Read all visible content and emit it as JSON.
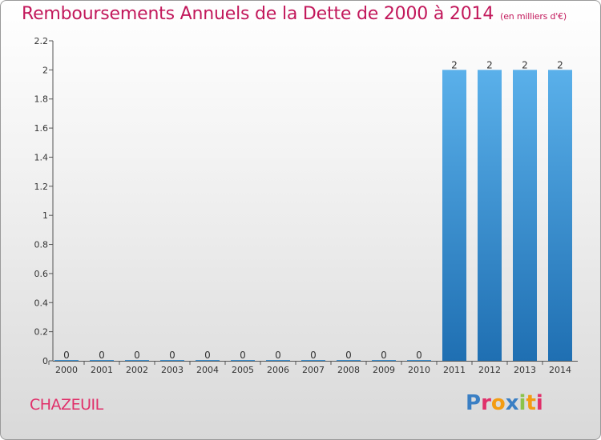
{
  "header": {
    "title": "Remboursements Annuels de la Dette de 2000 à 2014",
    "unit": "(en milliers d'€)"
  },
  "footer": {
    "commune": "CHAZEUIL",
    "logo": "Proxiti"
  },
  "colors": {
    "title": "#c2185b",
    "bar_top": "#5ab0ea",
    "bar_bottom": "#1f6fb2",
    "logo_letters": [
      "#3a7fc4",
      "#e0306a",
      "#f39c12",
      "#3a7fc4",
      "#8bc34a",
      "#f39c12",
      "#e0306a"
    ]
  },
  "chart_data": {
    "type": "bar",
    "title": "Remboursements Annuels de la Dette de 2000 à 2014",
    "subtitle": "(en milliers d'€)",
    "xlabel": "",
    "ylabel": "",
    "categories": [
      "2000",
      "2001",
      "2002",
      "2003",
      "2004",
      "2005",
      "2006",
      "2007",
      "2008",
      "2009",
      "2010",
      "2011",
      "2012",
      "2013",
      "2014"
    ],
    "values": [
      0,
      0,
      0,
      0,
      0,
      0,
      0,
      0,
      0,
      0,
      0,
      2,
      2,
      2,
      2
    ],
    "ylim": [
      0,
      2.2
    ],
    "yticks": [
      0,
      0.2,
      0.4,
      0.6,
      0.8,
      1,
      1.2,
      1.4,
      1.6,
      1.8,
      2,
      2.2
    ],
    "ytick_labels": [
      "0",
      "0.2",
      "0.4",
      "0.6",
      "0.8",
      "1",
      "1.2",
      "1.4",
      "1.6",
      "1.8",
      "2",
      "2.2"
    ],
    "data_labels": [
      "0",
      "0",
      "0",
      "0",
      "0",
      "0",
      "0",
      "0",
      "0",
      "0",
      "0",
      "2",
      "2",
      "2",
      "2"
    ],
    "grid": false,
    "legend": "none"
  }
}
